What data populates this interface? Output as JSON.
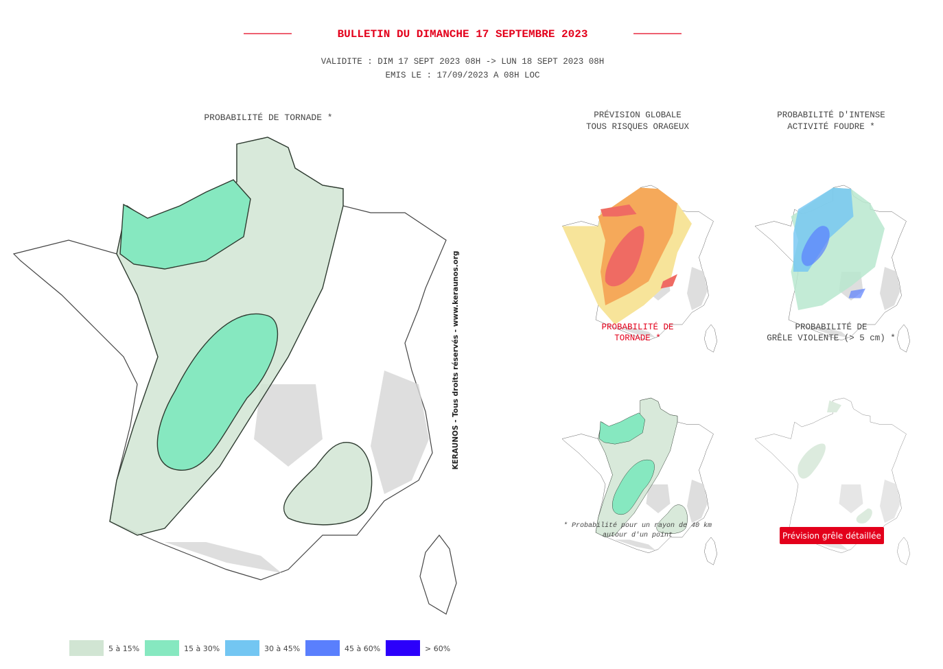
{
  "header": {
    "title": "BULLETIN DU DIMANCHE 17 SEPTEMBRE 2023",
    "validity": "VALIDITE : DIM 17 SEPT 2023 08H -> LUN 18 SEPT 2023 08H",
    "issued": "EMIS LE : 17/09/2023 A 08H LOC"
  },
  "main_map": {
    "title": "PROBABILITÉ DE TORNADE *",
    "credit": "KERAUNOS - Tous droits réservés - www.keraunos.org"
  },
  "thumbnails": [
    {
      "lines": [
        "PRÉVISION GLOBALE",
        "TOUS RISQUES ORAGEUX"
      ]
    },
    {
      "lines": [
        "PROBABILITÉ D'INTENSE",
        "ACTIVITÉ FOUDRE *"
      ]
    },
    {
      "lines": [
        "PROBABILITÉ DE",
        "TORNADE *"
      ]
    },
    {
      "lines": [
        "PROBABILITÉ DE",
        "GRÊLE VIOLENTE (> 5 cm) *"
      ]
    }
  ],
  "footnote": [
    "* Probabilité pour un rayon de 40 km",
    "autour d'un point"
  ],
  "button": "Prévision grêle détaillée",
  "legend": [
    {
      "label": "5 à 15%",
      "color": "#d1e5d3"
    },
    {
      "label": "15 à 30%",
      "color": "#86e8c0"
    },
    {
      "label": "30 à 45%",
      "color": "#73c6f2"
    },
    {
      "label": "45 à 60%",
      "color": "#5a7ffd"
    },
    {
      "label": "> 60%",
      "color": "#2c00fb"
    }
  ]
}
